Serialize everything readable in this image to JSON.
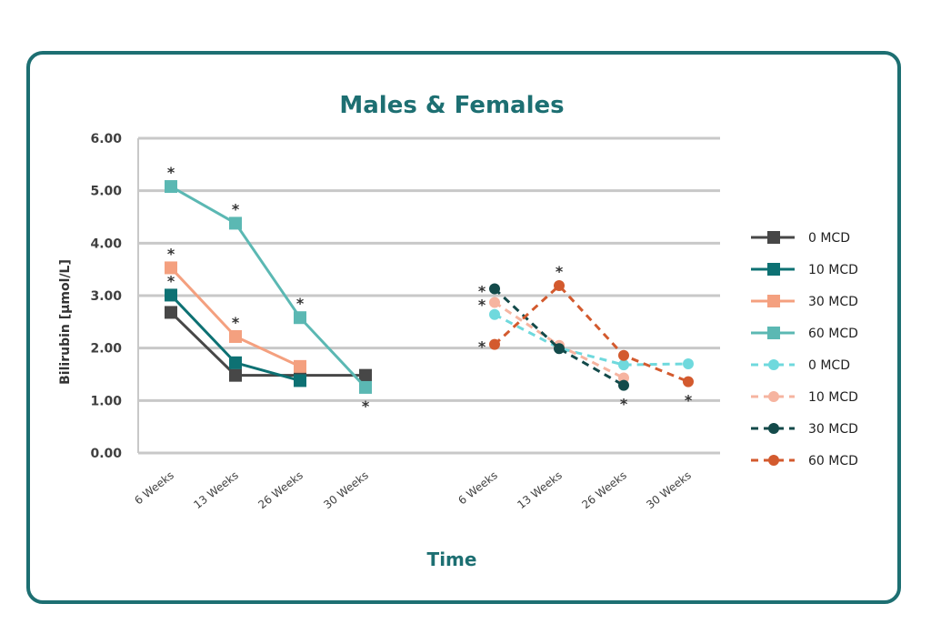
{
  "chart_data": {
    "type": "line",
    "title": "Males & Females",
    "xlabel": "Time",
    "ylabel": "Bilirubin [µmol/L]",
    "ylim": [
      0,
      6
    ],
    "yticks": [
      "0.00",
      "1.00",
      "2.00",
      "3.00",
      "4.00",
      "5.00",
      "6.00"
    ],
    "grid": true,
    "legend_position": "right",
    "groups": [
      {
        "categories": [
          "6 Weeks",
          "13 Weeks",
          "26 Weeks",
          "30 Weeks"
        ],
        "marker": "square",
        "dash": false,
        "series": [
          {
            "name": "0 MCD",
            "color": "#474747",
            "values": [
              2.68,
              1.48,
              1.48,
              1.48
            ],
            "stars": [
              false,
              false,
              false,
              false
            ]
          },
          {
            "name": "10 MCD",
            "color": "#0d7173",
            "values": [
              3.01,
              1.72,
              1.38,
              null
            ],
            "stars": [
              true,
              false,
              false,
              false
            ]
          },
          {
            "name": "30 MCD",
            "color": "#f4a07f",
            "values": [
              3.53,
              2.22,
              1.65,
              null
            ],
            "stars": [
              true,
              true,
              false,
              false
            ]
          },
          {
            "name": "60 MCD",
            "color": "#5bb8b3",
            "values": [
              5.08,
              4.38,
              2.58,
              1.25
            ],
            "stars": [
              true,
              true,
              true,
              true
            ]
          }
        ]
      },
      {
        "categories": [
          "6 Weeks",
          "13 Weeks",
          "26 Weeks",
          "30 Weeks"
        ],
        "marker": "circle",
        "dash": true,
        "series": [
          {
            "name": "0 MCD",
            "color": "#6fd9dd",
            "values": [
              2.64,
              2.0,
              1.68,
              1.7
            ],
            "stars": [
              false,
              false,
              false,
              false
            ]
          },
          {
            "name": "10 MCD",
            "color": "#f6b4a0",
            "values": [
              2.87,
              2.05,
              1.43,
              null
            ],
            "stars": [
              true,
              false,
              false,
              false
            ]
          },
          {
            "name": "30 MCD",
            "color": "#134a4a",
            "values": [
              3.13,
              1.99,
              1.29,
              null
            ],
            "stars": [
              true,
              false,
              true,
              false
            ]
          },
          {
            "name": "60 MCD",
            "color": "#d35a2e",
            "values": [
              2.07,
              3.19,
              1.86,
              1.36
            ],
            "stars": [
              true,
              true,
              false,
              true
            ]
          }
        ]
      }
    ]
  }
}
